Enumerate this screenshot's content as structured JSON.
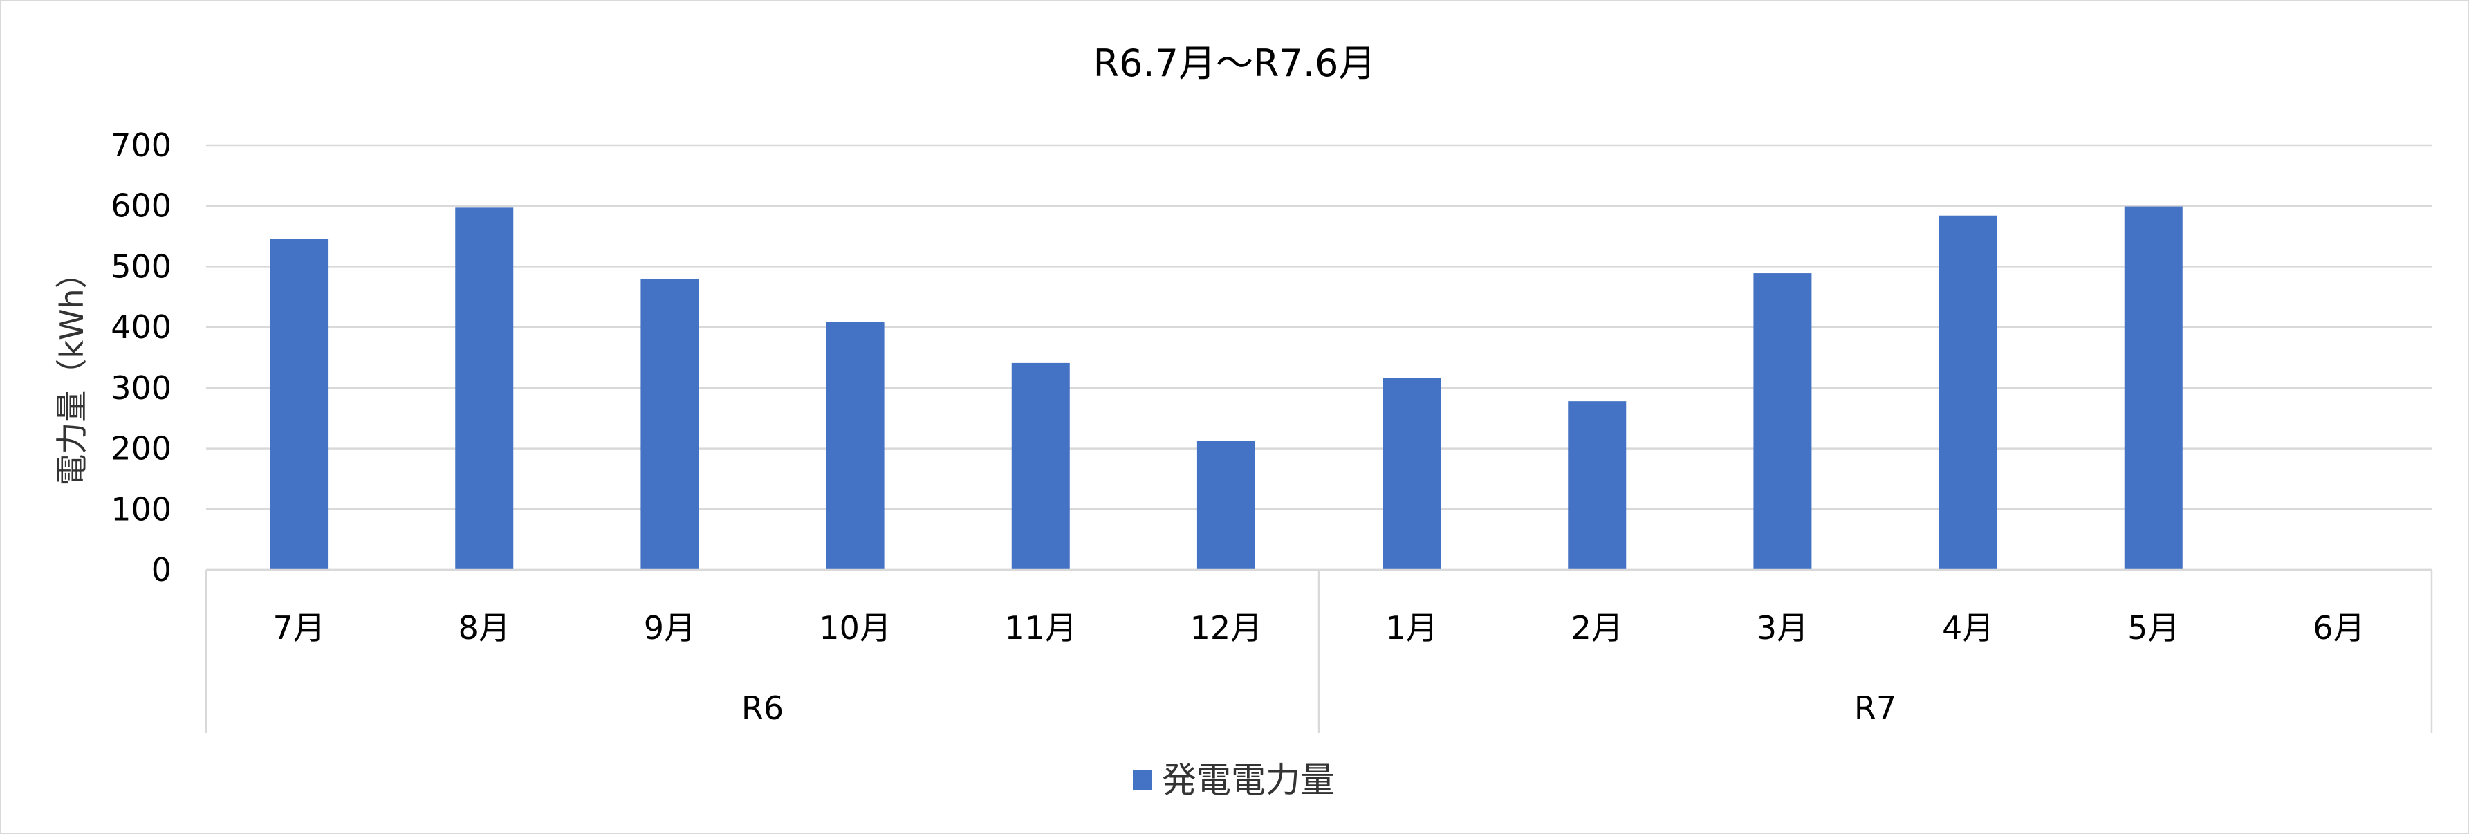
{
  "chart_data": {
    "type": "bar",
    "title": "R6.7月～R7.6月",
    "ylabel": "電力量（kWh）",
    "xlabel": "",
    "ylim": [
      0,
      700
    ],
    "yticks": [
      0,
      100,
      200,
      300,
      400,
      500,
      600,
      700
    ],
    "grid": true,
    "legend": "bottom",
    "categories": [
      "7月",
      "8月",
      "9月",
      "10月",
      "11月",
      "12月",
      "1月",
      "2月",
      "3月",
      "4月",
      "5月",
      "6月"
    ],
    "groups": [
      {
        "label": "R6",
        "count": 6
      },
      {
        "label": "R7",
        "count": 6
      }
    ],
    "series": [
      {
        "name": "発電電力量",
        "color": "#4472c4",
        "values": [
          545,
          597,
          480,
          409,
          341,
          213,
          316,
          278,
          489,
          584,
          599,
          null
        ]
      }
    ]
  }
}
